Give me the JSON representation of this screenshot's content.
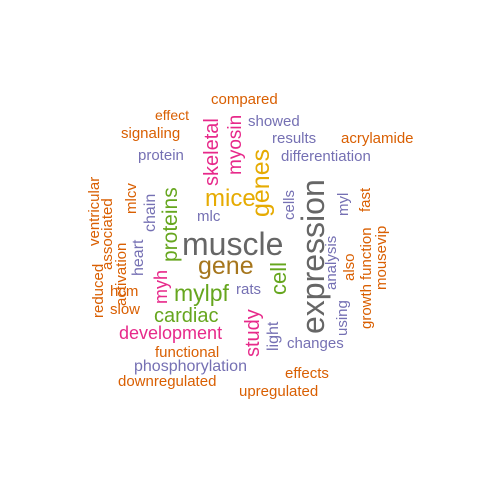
{
  "colors": {
    "orange": "#d95f02",
    "purple": "#7570b3",
    "magenta": "#e7298a",
    "green": "#66a61e",
    "gold": "#e6ab02",
    "brown": "#a6761d",
    "gray": "#666666"
  },
  "words": {
    "muscle": "muscle",
    "expression": "expression",
    "gene": "gene",
    "genes": "genes",
    "mice": "mice",
    "mylpf": "mylpf",
    "proteins": "proteins",
    "cardiac": "cardiac",
    "development": "development",
    "myosin": "myosin",
    "skeletal": "skeletal",
    "cell": "cell",
    "study": "study",
    "myh": "myh",
    "compared": "compared",
    "effect": "effect",
    "showed": "showed",
    "signaling": "signaling",
    "results": "results",
    "acrylamide": "acrylamide",
    "protein": "protein",
    "differentiation": "differentiation",
    "ventricular": "ventricular",
    "associated": "associated",
    "mlcv": "mlcv",
    "chain": "chain",
    "mlc": "mlc",
    "cells": "cells",
    "myl": "myl",
    "fast": "fast",
    "function": "function",
    "growth": "growth",
    "mousevip": "mousevip",
    "also": "also",
    "analysis": "analysis",
    "using": "using",
    "reduced": "reduced",
    "activation": "activation",
    "heart": "heart",
    "hcm": "hcm",
    "slow": "slow",
    "rats": "rats",
    "light": "light",
    "changes": "changes",
    "functional": "functional",
    "phosphorylation": "phosphorylation",
    "effects": "effects",
    "downregulated": "downregulated",
    "upregulated": "upregulated"
  }
}
